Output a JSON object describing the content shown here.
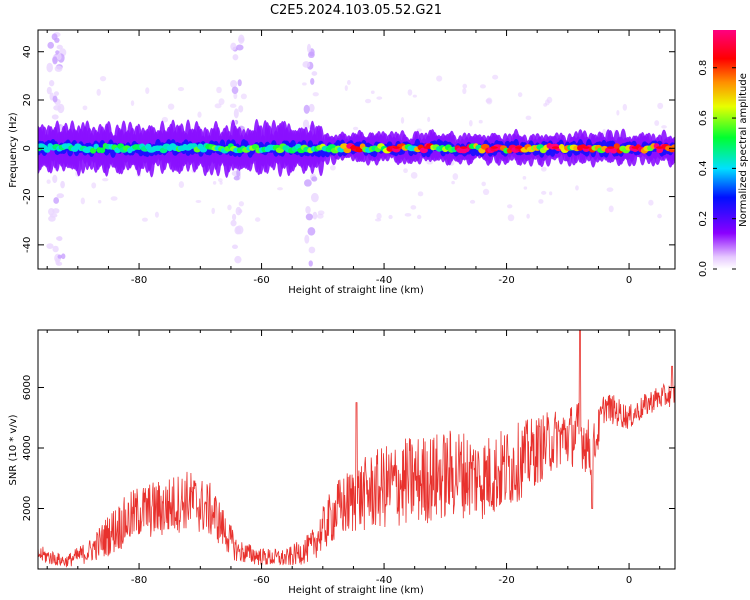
{
  "title": "C2E5.2024.103.05.52.G21",
  "colors": {
    "snr_line": "#e8312d",
    "axis": "#000000"
  },
  "chart_data": [
    {
      "type": "heatmap",
      "xlabel": "Height of straight line (km)",
      "ylabel": "Frequency (Hz)",
      "xlim": [
        -96.5,
        7.5
      ],
      "ylim": [
        -50,
        49
      ],
      "xticks": [
        -80,
        -60,
        -40,
        -20,
        0
      ],
      "yticks": [
        -40,
        -20,
        0,
        20,
        40
      ],
      "grid": false,
      "colorbar": {
        "label": "Normalized spectral amplitude",
        "range": [
          0,
          0.95
        ],
        "ticks": [
          0.0,
          0.2,
          0.4,
          0.6,
          0.8
        ],
        "colormap": "rainbow (white-violet-blue-cyan-green-yellow-red-magenta)"
      },
      "description_values": {
        "band_center_hz": 0,
        "band_width_hz": 10,
        "peak_amplitude_locations_km": [
          -45,
          -38,
          -33,
          -27,
          -22,
          -18,
          -12,
          -7,
          -3,
          1,
          5
        ],
        "vertical_streaks_km": [
          -94,
          -93,
          -64,
          -52
        ]
      }
    },
    {
      "type": "line",
      "xlabel": "Height of straight line (km)",
      "ylabel": "SNR (10 * v/v)",
      "xlim": [
        -96.5,
        7.5
      ],
      "ylim": [
        0,
        7900
      ],
      "xticks": [
        -80,
        -60,
        -40,
        -20,
        0
      ],
      "yticks": [
        2000,
        4000,
        6000
      ],
      "grid": false,
      "series": [
        {
          "envelope_x": [
            -96.5,
            -92,
            -88,
            -84,
            -80,
            -76,
            -72,
            -68,
            -64,
            -60,
            -56,
            -52,
            -48,
            -44,
            -40,
            -36,
            -32,
            -28,
            -24,
            -20,
            -16,
            -12,
            -8,
            -6,
            -4,
            -2,
            0,
            2,
            4,
            7.5
          ],
          "envelope_y": [
            500,
            250,
            600,
            1300,
            1900,
            2000,
            2300,
            1900,
            600,
            400,
            350,
            700,
            1900,
            2400,
            2700,
            2900,
            3000,
            3200,
            3000,
            3300,
            3800,
            4300,
            4500,
            3800,
            5400,
            5200,
            5000,
            5300,
            5600,
            5800
          ],
          "noise_amplitude": [
            300,
            200,
            400,
            800,
            900,
            1000,
            1000,
            900,
            400,
            300,
            300,
            500,
            1000,
            1200,
            1400,
            1500,
            1500,
            1500,
            1400,
            1400,
            1200,
            1000,
            1100,
            900,
            500,
            500,
            400,
            400,
            400,
            400
          ],
          "notable_points": [
            {
              "x": -8,
              "y": 7900
            },
            {
              "x": -44.5,
              "y": 5500
            },
            {
              "x": 7,
              "y": 6700
            },
            {
              "x": -6,
              "y": 2000
            }
          ]
        }
      ]
    }
  ]
}
